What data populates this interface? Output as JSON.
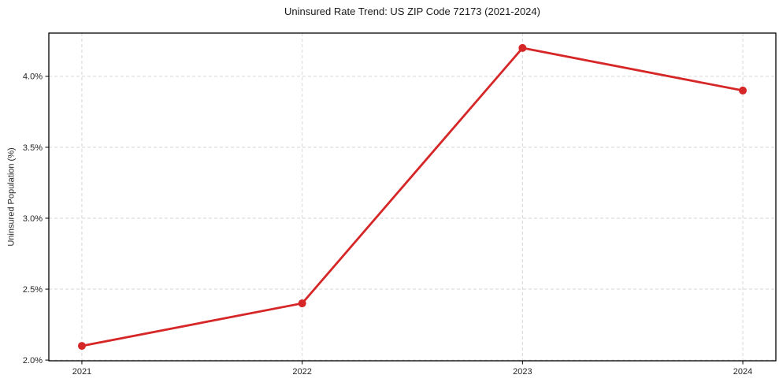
{
  "figure": {
    "background": "#ffffff"
  },
  "chart_data": {
    "type": "line",
    "title": "Uninsured Rate Trend: US ZIP Code 72173 (2021-2024)",
    "xlabel": "",
    "ylabel": "Uninsured Population (%)",
    "x": [
      2021,
      2022,
      2023,
      2024
    ],
    "x_tick_labels": [
      "2021",
      "2022",
      "2023",
      "2024"
    ],
    "y_ticks": [
      2.0,
      2.5,
      3.0,
      3.5,
      4.0
    ],
    "y_tick_labels": [
      "2.0%",
      "2.5%",
      "3.0%",
      "3.5%",
      "4.0%"
    ],
    "series": [
      {
        "values": [
          2.1,
          2.4,
          4.2,
          3.9
        ],
        "color": "#d62728",
        "marker": "circle",
        "line_width": 2.8,
        "marker_radius": 5
      }
    ],
    "xlim": [
      2020.85,
      2024.15
    ],
    "ylim": [
      1.995,
      4.305
    ],
    "grid": true,
    "grid_style": "dashed",
    "legend": "none"
  },
  "style": {
    "grid_color": "#d6d6d6",
    "spine_color": "#000000",
    "tick_color": "#000000",
    "text_color": "#262626",
    "title_color": "#1a1a1a"
  }
}
